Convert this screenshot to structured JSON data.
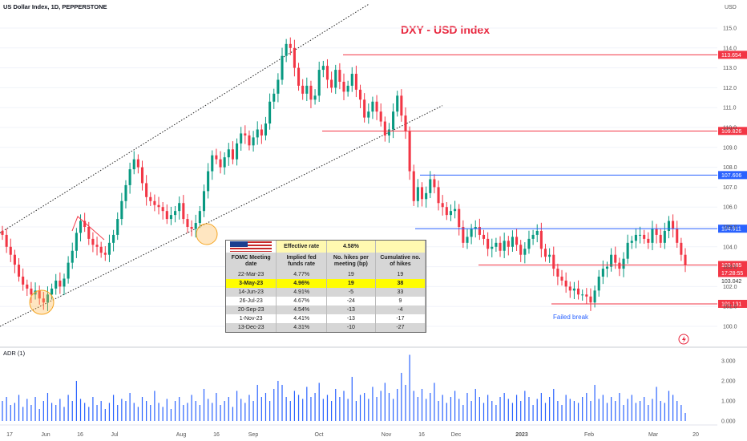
{
  "header": {
    "symbol_title": "US Dollar Index, 1D, PEPPERSTONE",
    "currency": "USD"
  },
  "chart_data": {
    "type": "candlestick",
    "title": "DXY - USD index",
    "ylim": [
      99.5,
      116
    ],
    "y_ticks": [
      100.0,
      101.0,
      102.0,
      103.0,
      104.0,
      105.0,
      106.0,
      107.0,
      108.0,
      109.0,
      110.0,
      111.0,
      112.0,
      113.0,
      114.0,
      115.0
    ],
    "x_ticks": [
      "17",
      "Jun",
      "16",
      "Jul",
      "Aug",
      "16",
      "Sep",
      "Oct",
      "Nov",
      "16",
      "Dec",
      "2023",
      "Feb",
      "Mar",
      "20"
    ],
    "level_lines": [
      {
        "value": 113.654,
        "label": "113.654",
        "color": "#f23645"
      },
      {
        "value": 109.826,
        "label": "109.826",
        "color": "#f23645"
      },
      {
        "value": 107.606,
        "label": "107.606",
        "color": "#2962ff"
      },
      {
        "value": 104.911,
        "label": "104.911",
        "color": "#2962ff"
      },
      {
        "value": 103.085,
        "label": "103.085",
        "color": "#f23645"
      },
      {
        "value": 101.131,
        "label": "101.131",
        "color": "#f23645"
      }
    ],
    "last_price": {
      "value": "103.085",
      "countdown": "17:28:55",
      "low": "103.042"
    },
    "annotations": [
      "Failed break"
    ],
    "closes": [
      104.6,
      104.0,
      103.6,
      103.1,
      102.5,
      102.1,
      101.9,
      101.6,
      101.8,
      101.4,
      101.2,
      101.6,
      101.9,
      102.3,
      102.0,
      102.4,
      103.2,
      103.8,
      104.7,
      105.3,
      105.0,
      104.4,
      104.1,
      104.0,
      103.7,
      103.6,
      104.2,
      104.6,
      105.4,
      106.3,
      107.1,
      107.9,
      108.4,
      108.0,
      107.2,
      106.5,
      106.3,
      106.1,
      106.0,
      105.8,
      105.4,
      105.6,
      105.8,
      106.2,
      105.4,
      105.0,
      104.9,
      105.2,
      105.8,
      106.8,
      107.8,
      108.6,
      108.4,
      108.0,
      108.5,
      108.9,
      108.4,
      109.2,
      109.7,
      109.6,
      109.1,
      109.5,
      109.9,
      109.6,
      110.2,
      111.3,
      111.7,
      112.4,
      113.6,
      114.2,
      114.0,
      113.0,
      112.1,
      111.7,
      112.1,
      111.4,
      111.6,
      112.9,
      113.1,
      112.4,
      112.0,
      112.9,
      112.3,
      111.8,
      112.1,
      112.7,
      111.9,
      111.4,
      110.5,
      110.8,
      111.3,
      110.8,
      110.3,
      109.6,
      109.9,
      110.8,
      111.6,
      110.6,
      109.8,
      107.8,
      106.3,
      107.0,
      106.4,
      106.7,
      107.4,
      107.0,
      106.2,
      106.0,
      105.6,
      105.8,
      105.9,
      105.0,
      104.2,
      104.5,
      104.9,
      105.0,
      104.6,
      104.4,
      103.9,
      104.0,
      104.2,
      103.8,
      104.3,
      104.0,
      104.5,
      104.1,
      103.6,
      103.9,
      104.4,
      104.6,
      104.8,
      103.9,
      103.5,
      103.6,
      102.9,
      102.5,
      102.3,
      102.0,
      101.8,
      101.9,
      101.6,
      101.6,
      101.5,
      101.2,
      101.8,
      102.5,
      102.9,
      103.0,
      103.6,
      103.2,
      102.9,
      103.4,
      104.2,
      104.3,
      104.6,
      104.6,
      104.4,
      104.2,
      104.9,
      104.6,
      104.2,
      104.8,
      105.3,
      104.9,
      104.2,
      103.6,
      103.1
    ],
    "indicator": {
      "name": "ADR (1)",
      "ylim": [
        0,
        3.5
      ],
      "y_ticks": [
        0.0,
        1.0,
        2.0,
        3.0
      ],
      "y_tick_labels": [
        "0.000",
        "1.000",
        "2.000",
        "3.000"
      ],
      "values": [
        1.0,
        1.2,
        0.8,
        0.9,
        1.3,
        0.7,
        1.1,
        0.8,
        1.2,
        0.6,
        1.0,
        1.4,
        0.9,
        0.8,
        1.1,
        0.7,
        1.3,
        1.0,
        2.0,
        1.1,
        0.9,
        0.7,
        1.2,
        0.8,
        1.0,
        0.6,
        0.9,
        1.3,
        0.8,
        1.1,
        1.0,
        1.4,
        0.9,
        0.7,
        1.2,
        1.0,
        0.8,
        1.5,
        0.9,
        0.7,
        1.1,
        0.6,
        1.0,
        1.2,
        0.8,
        0.9,
        1.3,
        1.0,
        0.8,
        1.6,
        1.1,
        0.9,
        1.4,
        0.8,
        1.0,
        1.2,
        0.7,
        1.5,
        1.1,
        0.9,
        1.3,
        1.0,
        1.8,
        1.2,
        1.4,
        1.0,
        1.6,
        2.0,
        1.8,
        1.2,
        1.0,
        1.5,
        1.3,
        1.1,
        1.7,
        1.2,
        1.4,
        1.9,
        1.1,
        1.3,
        1.0,
        1.6,
        1.2,
        1.5,
        1.1,
        2.2,
        1.0,
        1.3,
        1.4,
        1.1,
        1.7,
        1.2,
        1.5,
        1.9,
        1.4,
        1.1,
        1.6,
        2.4,
        1.8,
        3.3,
        1.5,
        1.2,
        1.6,
        1.1,
        1.4,
        1.9,
        1.0,
        1.3,
        0.9,
        1.2,
        1.5,
        1.1,
        0.8,
        1.4,
        1.0,
        1.6,
        1.2,
        0.9,
        1.3,
        1.0,
        0.8,
        1.2,
        1.4,
        1.1,
        0.9,
        1.3,
        1.0,
        1.5,
        1.2,
        0.8,
        1.1,
        1.4,
        0.9,
        1.2,
        1.6,
        1.0,
        0.8,
        1.3,
        1.1,
        1.0,
        0.9,
        1.2,
        1.4,
        1.0,
        1.8,
        1.1,
        1.3,
        0.9,
        1.2,
        1.0,
        1.4,
        0.8,
        1.1,
        1.3,
        0.9,
        1.0,
        1.2,
        0.8,
        1.1,
        1.7,
        1.0,
        0.9,
        1.5,
        1.3,
        1.0,
        0.8,
        0.4
      ]
    }
  },
  "fomc_table": {
    "top": {
      "effective_label": "Effective rate",
      "effective_value": "4.58%"
    },
    "columns": [
      "FOMC Meeting date",
      "Implied fed funds rate",
      "No. hikes per meeting (bp)",
      "Cumulative no. of hikes"
    ],
    "rows": [
      {
        "date": "22-Mar-23",
        "rate": "4.77%",
        "hikes": "19",
        "cum": "19"
      },
      {
        "date": "3-May-23",
        "rate": "4.96%",
        "hikes": "19",
        "cum": "38"
      },
      {
        "date": "14-Jun-23",
        "rate": "4.91%",
        "hikes": "-5",
        "cum": "33"
      },
      {
        "date": "26-Jul-23",
        "rate": "4.67%",
        "hikes": "-24",
        "cum": "9"
      },
      {
        "date": "20-Sep-23",
        "rate": "4.54%",
        "hikes": "-13",
        "cum": "-4"
      },
      {
        "date": "1-Nov-23",
        "rate": "4.41%",
        "hikes": "-13",
        "cum": "-17"
      },
      {
        "date": "13-Dec-23",
        "rate": "4.31%",
        "hikes": "-10",
        "cum": "-27"
      }
    ]
  }
}
